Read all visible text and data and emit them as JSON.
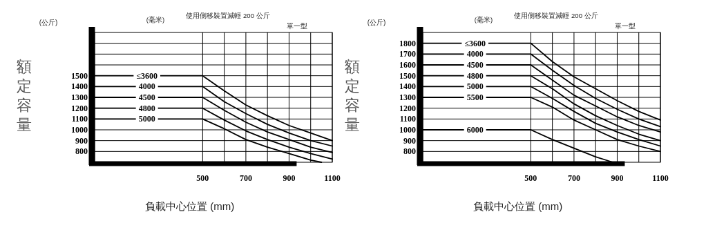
{
  "chart_data": [
    {
      "type": "line",
      "title": "使用側移裝置減輕 200 公斤",
      "subtitle": "單一型",
      "xlabel": "負載中心位置 (mm)",
      "ylabel": "額定容量",
      "annotations": [
        "(公斤)",
        "(毫米)"
      ],
      "xlim": [
        0,
        1100
      ],
      "ylim": [
        700,
        1900
      ],
      "xticks": [
        500,
        {
          "value": 600,
          "label": null
        },
        700,
        {
          "value": 800,
          "label": null
        },
        900,
        {
          "value": 1000,
          "label": null
        },
        1100
      ],
      "yticks": [
        800,
        900,
        1000,
        1100,
        1200,
        1300,
        1400,
        1500,
        {
          "value": 1600,
          "label": null
        },
        {
          "value": 1700,
          "label": null
        },
        {
          "value": 1800,
          "label": null
        }
      ],
      "grid": true,
      "marker": "none",
      "line_style": "solid",
      "series": [
        {
          "name": "≤3600",
          "color": "#000000",
          "x": [
            0,
            500,
            600,
            700,
            800,
            900,
            1000,
            1100
          ],
          "values": [
            1500,
            1500,
            1360,
            1230,
            1130,
            1040,
            970,
            900
          ]
        },
        {
          "name": "4000",
          "color": "#000000",
          "x": [
            0,
            500,
            600,
            700,
            800,
            900,
            1000,
            1100
          ],
          "values": [
            1400,
            1400,
            1260,
            1150,
            1050,
            970,
            900,
            850
          ]
        },
        {
          "name": "4500",
          "color": "#000000",
          "x": [
            0,
            500,
            600,
            700,
            800,
            900,
            1000,
            1100
          ],
          "values": [
            1300,
            1300,
            1180,
            1070,
            980,
            910,
            840,
            790
          ]
        },
        {
          "name": "4800",
          "color": "#000000",
          "x": [
            0,
            500,
            600,
            700,
            800,
            900,
            1000,
            1100
          ],
          "values": [
            1200,
            1200,
            1090,
            990,
            910,
            840,
            780,
            730
          ]
        },
        {
          "name": "5000",
          "color": "#000000",
          "x": [
            0,
            500,
            600,
            700,
            800,
            900,
            1000,
            1050
          ],
          "values": [
            1100,
            1100,
            1010,
            910,
            840,
            780,
            720,
            700
          ]
        }
      ]
    },
    {
      "type": "line",
      "title": "使用側移裝置減輕 200 公斤",
      "subtitle": "單一型",
      "xlabel": "負載中心位置 (mm)",
      "ylabel": "額定容量",
      "annotations": [
        "(公斤)",
        "(毫米)"
      ],
      "xlim": [
        0,
        1100
      ],
      "ylim": [
        700,
        1900
      ],
      "xticks": [
        500,
        {
          "value": 600,
          "label": null
        },
        700,
        {
          "value": 800,
          "label": null
        },
        900,
        {
          "value": 1000,
          "label": null
        },
        1100
      ],
      "yticks": [
        800,
        900,
        1000,
        1100,
        1200,
        1300,
        1400,
        1500,
        1600,
        1700,
        1800
      ],
      "grid": true,
      "marker": "none",
      "line_style": "solid",
      "series": [
        {
          "name": "≤3600",
          "color": "#000000",
          "x": [
            0,
            500,
            600,
            700,
            800,
            900,
            1000,
            1100
          ],
          "values": [
            1800,
            1800,
            1630,
            1490,
            1380,
            1270,
            1170,
            1090
          ]
        },
        {
          "name": "4000",
          "color": "#000000",
          "x": [
            0,
            500,
            600,
            700,
            800,
            900,
            1000,
            1100
          ],
          "values": [
            1700,
            1700,
            1550,
            1410,
            1290,
            1190,
            1100,
            1030
          ]
        },
        {
          "name": "4500",
          "color": "#000000",
          "x": [
            0,
            500,
            600,
            700,
            800,
            900,
            1000,
            1100
          ],
          "values": [
            1600,
            1600,
            1460,
            1320,
            1220,
            1120,
            1040,
            980
          ]
        },
        {
          "name": "4800",
          "color": "#000000",
          "x": [
            0,
            500,
            600,
            700,
            800,
            900,
            1000,
            1100
          ],
          "values": [
            1500,
            1500,
            1380,
            1240,
            1130,
            1040,
            960,
            900
          ]
        },
        {
          "name": "5000",
          "color": "#000000",
          "x": [
            0,
            500,
            600,
            700,
            800,
            900,
            1000,
            1100
          ],
          "values": [
            1400,
            1400,
            1290,
            1170,
            1060,
            980,
            910,
            850
          ]
        },
        {
          "name": "5500",
          "color": "#000000",
          "x": [
            0,
            500,
            600,
            700,
            800,
            900,
            1000,
            1100
          ],
          "values": [
            1300,
            1300,
            1210,
            1090,
            1000,
            910,
            850,
            800
          ]
        },
        {
          "name": "6000",
          "color": "#000000",
          "x": [
            0,
            500,
            600,
            700,
            800,
            880
          ],
          "values": [
            1000,
            1000,
            910,
            830,
            750,
            700
          ]
        }
      ]
    }
  ]
}
